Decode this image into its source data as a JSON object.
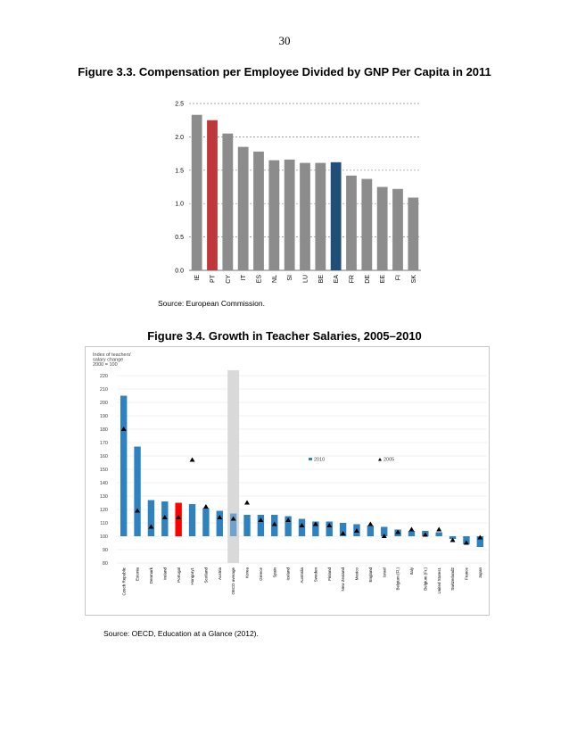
{
  "page_number": "30",
  "figures": {
    "fig1": {
      "title": "Figure 3.3. Compensation per Employee Divided by GNP Per Capita in 2011",
      "source": "Source: European Commission."
    },
    "fig2": {
      "title": "Figure 3.4. Growth in Teacher Salaries, 2005–2010",
      "source": "Source: OECD, Education at a Glance (2012)."
    }
  },
  "chart_data": [
    {
      "type": "bar",
      "title": "Figure 3.3. Compensation per Employee Divided by GNP Per Capita in 2011",
      "categories": [
        "IE",
        "PT",
        "CY",
        "IT",
        "ES",
        "NL",
        "SI",
        "LU",
        "BE",
        "EA",
        "FR",
        "DE",
        "EE",
        "FI",
        "SK"
      ],
      "values": [
        2.33,
        2.25,
        2.05,
        1.85,
        1.78,
        1.65,
        1.66,
        1.61,
        1.61,
        1.62,
        1.42,
        1.37,
        1.25,
        1.22,
        1.09
      ],
      "yticks": [
        "0.0",
        "0.5",
        "1.0",
        "1.5",
        "2.0",
        "2.5"
      ],
      "ylim": [
        0,
        2.5
      ],
      "grid": true,
      "colors": {
        "default": "#8c8c8c",
        "PT": "#c0373b",
        "EA": "#1f4e79"
      }
    },
    {
      "type": "bar",
      "title": "Figure 3.4. Growth in Teacher Salaries, 2005–2010",
      "ylabel_lines": [
        "Index of teachers'",
        "salary change",
        "2000 = 100"
      ],
      "categories": [
        "Czech Republic",
        "Estonia",
        "Denmark",
        "Ireland",
        "Portugal",
        "Hungary1",
        "Scotland",
        "Austria",
        "OECD average",
        "Korea",
        "Greece",
        "Spain",
        "Iceland",
        "Australia",
        "Sweden",
        "Finland",
        "New Zealand",
        "Mexico",
        "England",
        "Israel",
        "Belgium (Fl.)",
        "Italy",
        "Belgium (Fr.)",
        "United States1",
        "Switzerland2",
        "France",
        "Japan"
      ],
      "series": [
        {
          "name": "2010",
          "values": [
            205,
            167,
            127,
            126,
            125,
            124,
            121,
            119,
            117,
            116,
            116,
            116,
            115,
            113,
            111,
            111,
            110,
            109,
            108,
            107,
            105,
            104,
            104,
            103,
            98,
            94,
            92
          ]
        },
        {
          "name": "2005",
          "values": [
            180,
            119,
            107,
            114,
            114,
            157,
            122,
            114,
            113,
            125,
            112,
            109,
            112,
            108,
            109,
            108,
            102,
            104,
            109,
            100,
            103,
            105,
            101,
            105,
            97,
            95,
            99
          ]
        }
      ],
      "yticks": [
        "80",
        "90",
        "100",
        "110",
        "120",
        "130",
        "140",
        "150",
        "160",
        "170",
        "180",
        "190",
        "200",
        "210",
        "220"
      ],
      "ylim": [
        80,
        220
      ],
      "baseline": 100,
      "grid": true,
      "legend_position": "top-right",
      "highlight": {
        "OECD average": "shaded-band",
        "Portugal": "#ff0000"
      },
      "colors": {
        "bar": "#2e82c0",
        "highlight": "#ff0000",
        "oecd_bar": "#6fa3cf",
        "band": "#d9d9d9",
        "marker": "#000000",
        "grid": "#e6e6e6"
      }
    }
  ]
}
